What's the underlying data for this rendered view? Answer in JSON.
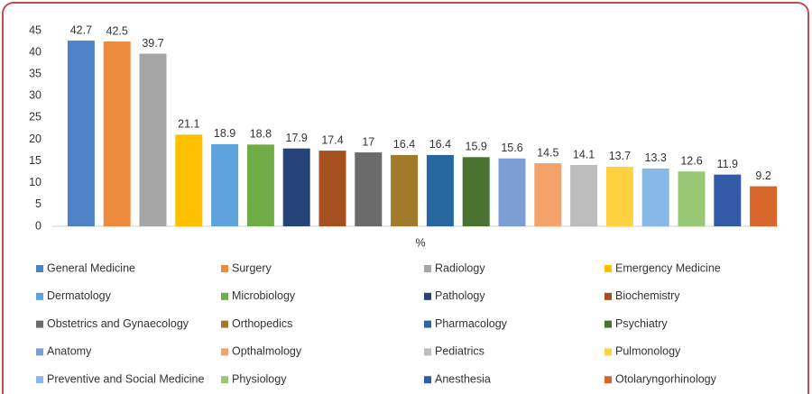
{
  "chart_data": {
    "type": "bar",
    "x_label": "%",
    "ylim": [
      0,
      45
    ],
    "yticks": [
      0,
      5,
      10,
      15,
      20,
      25,
      30,
      35,
      40,
      45
    ],
    "grid": false,
    "legend": "bottom",
    "series": [
      {
        "name": "General Medicine",
        "color": "#4f81c7",
        "values": [
          42.7
        ]
      },
      {
        "name": "Surgery",
        "color": "#ed8a3c",
        "values": [
          42.5
        ]
      },
      {
        "name": "Radiology",
        "color": "#a5a5a5",
        "values": [
          39.7
        ]
      },
      {
        "name": "Emergency Medicine",
        "color": "#ffc000",
        "values": [
          21.1
        ]
      },
      {
        "name": "Dermatology",
        "color": "#5ea3dc",
        "values": [
          18.9
        ]
      },
      {
        "name": "Microbiology",
        "color": "#70ad47",
        "values": [
          18.8
        ]
      },
      {
        "name": "Pathology",
        "color": "#264478",
        "values": [
          17.9
        ]
      },
      {
        "name": "Biochemistry",
        "color": "#a5501f",
        "values": [
          17.4
        ]
      },
      {
        "name": "Obstetrics and Gynaecology",
        "color": "#6b6b6b",
        "values": [
          17
        ]
      },
      {
        "name": "Orthopedics",
        "color": "#a07c2a",
        "values": [
          16.4
        ]
      },
      {
        "name": "Pharmacology",
        "color": "#25679e",
        "values": [
          16.4
        ]
      },
      {
        "name": "Psychiatry",
        "color": "#4a7332",
        "values": [
          15.9
        ]
      },
      {
        "name": "Anatomy",
        "color": "#7b9fd4",
        "values": [
          15.6
        ]
      },
      {
        "name": "Opthalmology",
        "color": "#f4a16a",
        "values": [
          14.5
        ]
      },
      {
        "name": "Pediatrics",
        "color": "#bdbdbd",
        "values": [
          14.1
        ]
      },
      {
        "name": "Pulmonology",
        "color": "#ffd23f",
        "values": [
          13.7
        ]
      },
      {
        "name": "Preventive and Social Medicine",
        "color": "#86b9e6",
        "values": [
          13.3
        ]
      },
      {
        "name": "Physiology",
        "color": "#98c873",
        "values": [
          12.6
        ]
      },
      {
        "name": "Anesthesia",
        "color": "#335aa6",
        "values": [
          11.9
        ]
      },
      {
        "name": "Otolaryngorhinology",
        "color": "#d9662a",
        "values": [
          9.2
        ]
      }
    ]
  }
}
